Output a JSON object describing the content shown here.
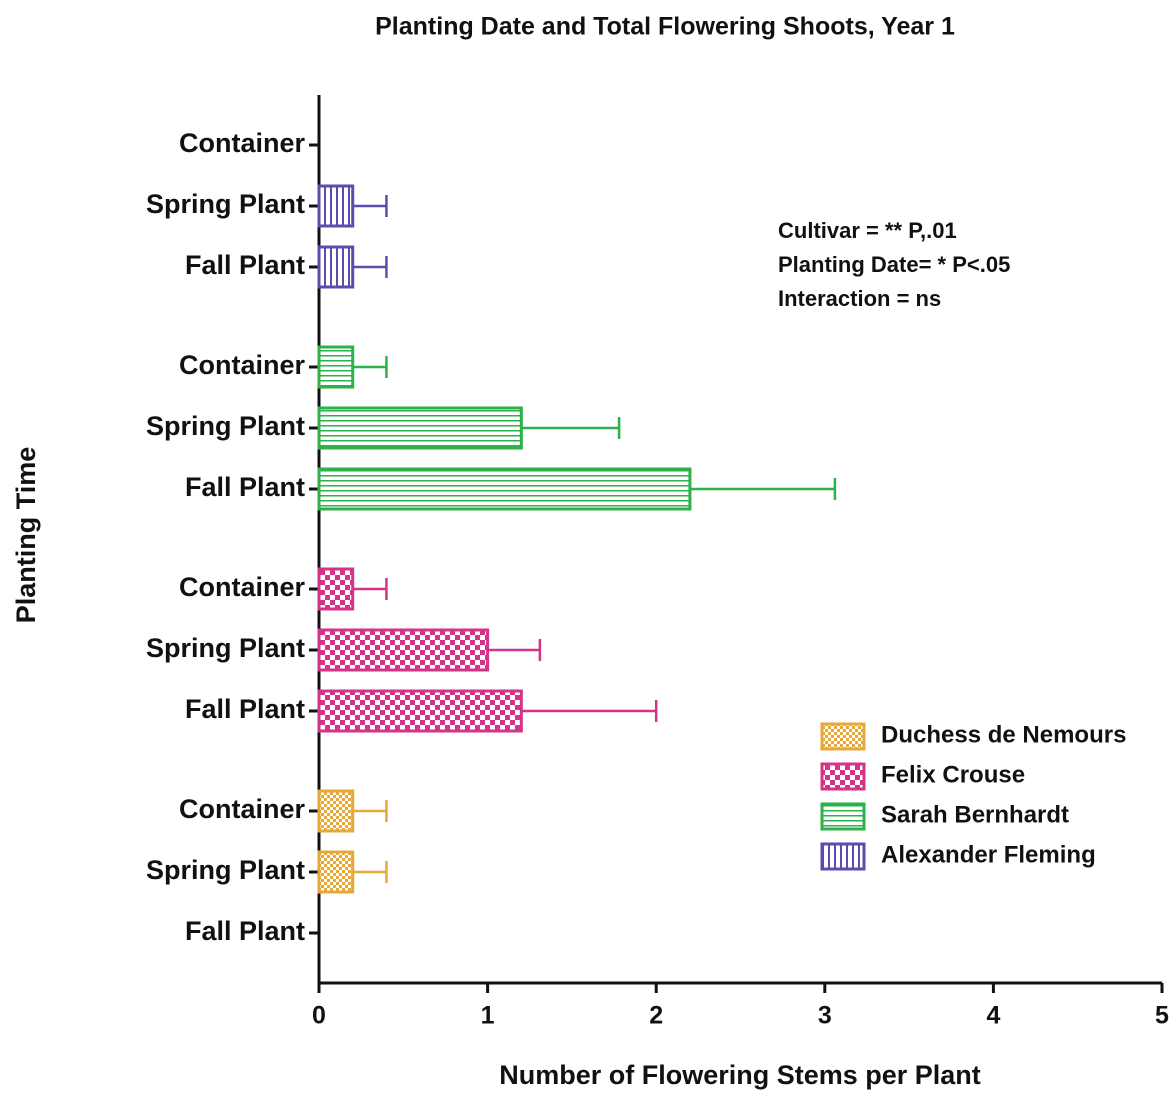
{
  "chart_data": {
    "type": "bar",
    "orientation": "horizontal",
    "title": "Planting Date and Total Flowering Shoots, Year 1",
    "x_label": "Number of Flowering Stems per Plant",
    "y_label": "Planting Time",
    "annotations": [
      "Cultivar = ** P,.01",
      "Planting Date= * P<.05",
      "Interaction = ns"
    ],
    "categories": [
      "Container",
      "Spring Plant",
      "Fall Plant",
      "Container",
      "Spring Plant",
      "Fall Plant",
      "Container",
      "Spring Plant",
      "Fall Plant",
      "Container",
      "Spring Plant",
      "Fall Plant"
    ],
    "series": [
      {
        "name": "Duchess de Nemours",
        "color": "#e6a83a",
        "pattern": "fine-checker",
        "values": [
          null,
          null,
          null,
          null,
          null,
          null,
          null,
          null,
          null,
          0.2,
          0.2,
          0
        ],
        "errors": [
          null,
          null,
          null,
          null,
          null,
          null,
          null,
          null,
          null,
          0.2,
          0.2,
          null
        ]
      },
      {
        "name": "Felix Crouse",
        "color": "#d4338a",
        "pattern": "checker",
        "values": [
          null,
          null,
          null,
          null,
          null,
          null,
          0.2,
          1.0,
          1.2,
          null,
          null,
          null
        ],
        "errors": [
          null,
          null,
          null,
          null,
          null,
          null,
          0.2,
          0.31,
          0.8,
          null,
          null,
          null
        ]
      },
      {
        "name": "Sarah Bernhardt",
        "color": "#2bb24a",
        "pattern": "horizontal",
        "values": [
          null,
          null,
          null,
          0.2,
          1.2,
          2.2,
          null,
          null,
          null,
          null,
          null,
          null
        ],
        "errors": [
          null,
          null,
          null,
          0.2,
          0.58,
          0.86,
          null,
          null,
          null,
          null,
          null,
          null
        ]
      },
      {
        "name": "Alexander Fleming",
        "color": "#5a4db0",
        "pattern": "vertical",
        "values": [
          0,
          0.2,
          0.2,
          null,
          null,
          null,
          null,
          null,
          null,
          null,
          null,
          null
        ],
        "errors": [
          null,
          0.2,
          0.2,
          null,
          null,
          null,
          null,
          null,
          null,
          null,
          null,
          null
        ]
      }
    ],
    "xlim": [
      0,
      5
    ],
    "xticks": [
      0,
      1,
      2,
      3,
      4,
      5
    ],
    "legend": "lower right"
  }
}
